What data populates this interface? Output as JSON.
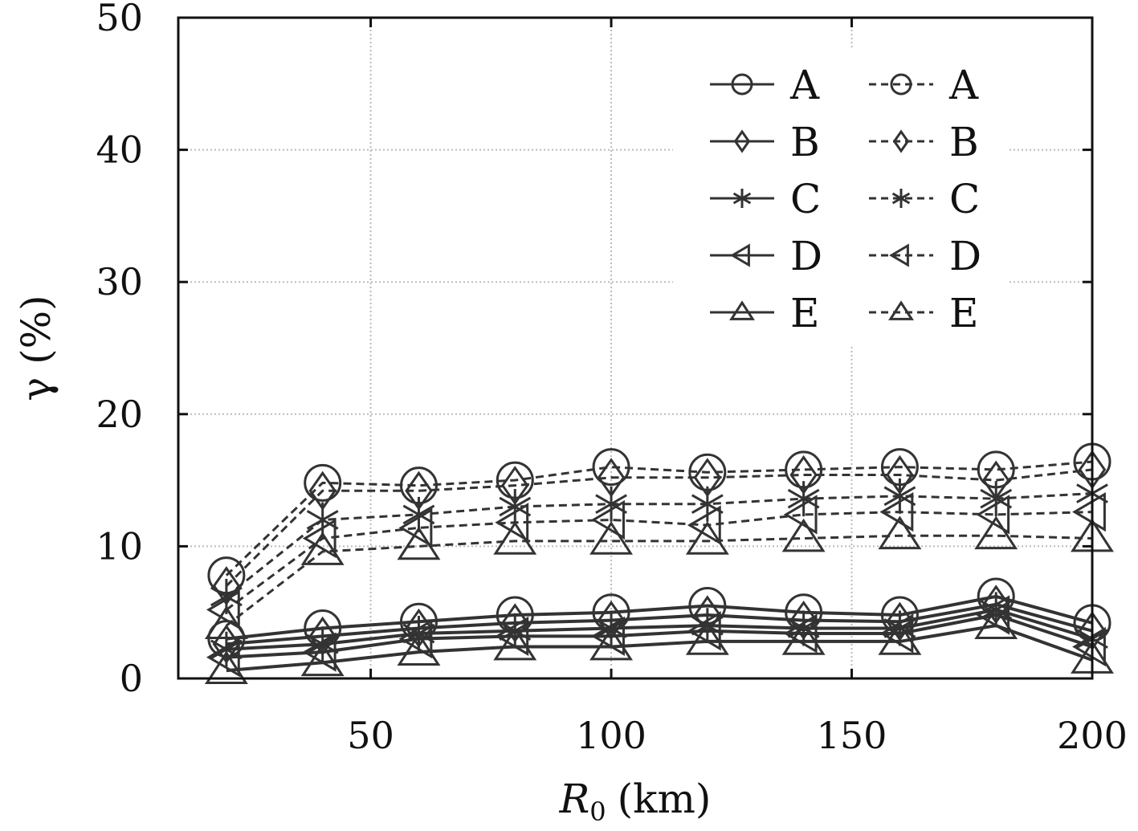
{
  "chart_data": {
    "type": "line",
    "xlabel": "(km)",
    "xlabel_symbol": "R",
    "xlabel_subscript": "0",
    "ylabel": "γ (%)",
    "xlim": [
      10,
      200
    ],
    "ylim": [
      0,
      50
    ],
    "xticks": [
      50,
      100,
      150,
      200
    ],
    "yticks": [
      0,
      10,
      20,
      30,
      40,
      50
    ],
    "grid": true,
    "legend_position": "top-right",
    "x": [
      20,
      40,
      60,
      80,
      100,
      120,
      140,
      160,
      180,
      200
    ],
    "series": [
      {
        "name": "A",
        "style": "solid",
        "marker": "circle",
        "values": [
          3.0,
          3.8,
          4.3,
          4.8,
          5.0,
          5.5,
          5.0,
          4.8,
          6.2,
          4.2
        ]
      },
      {
        "name": "B",
        "style": "solid",
        "marker": "diamond",
        "values": [
          2.6,
          3.2,
          3.8,
          4.2,
          4.4,
          4.8,
          4.4,
          4.3,
          5.6,
          3.6
        ]
      },
      {
        "name": "C",
        "style": "solid",
        "marker": "asterisk",
        "values": [
          2.2,
          2.6,
          3.4,
          3.6,
          3.8,
          4.0,
          3.8,
          3.8,
          5.2,
          3.0
        ]
      },
      {
        "name": "D",
        "style": "solid",
        "marker": "triangle-left",
        "values": [
          1.6,
          2.0,
          3.0,
          3.2,
          3.2,
          3.6,
          3.4,
          3.4,
          4.8,
          2.4
        ]
      },
      {
        "name": "E",
        "style": "solid",
        "marker": "triangle-up",
        "values": [
          0.6,
          1.2,
          2.0,
          2.4,
          2.4,
          2.8,
          2.8,
          2.8,
          4.0,
          1.4
        ]
      },
      {
        "name": "A",
        "style": "dashed",
        "marker": "circle",
        "values": [
          7.8,
          14.8,
          14.6,
          15.0,
          16.0,
          15.6,
          15.8,
          16.0,
          15.8,
          16.4
        ]
      },
      {
        "name": "B",
        "style": "dashed",
        "marker": "diamond",
        "values": [
          7.0,
          14.2,
          14.2,
          14.6,
          15.2,
          15.2,
          15.4,
          15.4,
          15.0,
          15.8
        ]
      },
      {
        "name": "C",
        "style": "dashed",
        "marker": "asterisk",
        "values": [
          6.2,
          12.0,
          12.4,
          13.0,
          13.2,
          13.2,
          13.6,
          13.8,
          13.6,
          14.0
        ]
      },
      {
        "name": "D",
        "style": "dashed",
        "marker": "triangle-left",
        "values": [
          5.2,
          10.6,
          11.4,
          11.8,
          12.0,
          11.6,
          12.4,
          12.6,
          12.4,
          12.6
        ]
      },
      {
        "name": "E",
        "style": "dashed",
        "marker": "triangle-up",
        "values": [
          4.0,
          9.6,
          10.0,
          10.4,
          10.4,
          10.4,
          10.6,
          10.8,
          10.8,
          10.6
        ]
      }
    ],
    "line_color": "#333333"
  }
}
